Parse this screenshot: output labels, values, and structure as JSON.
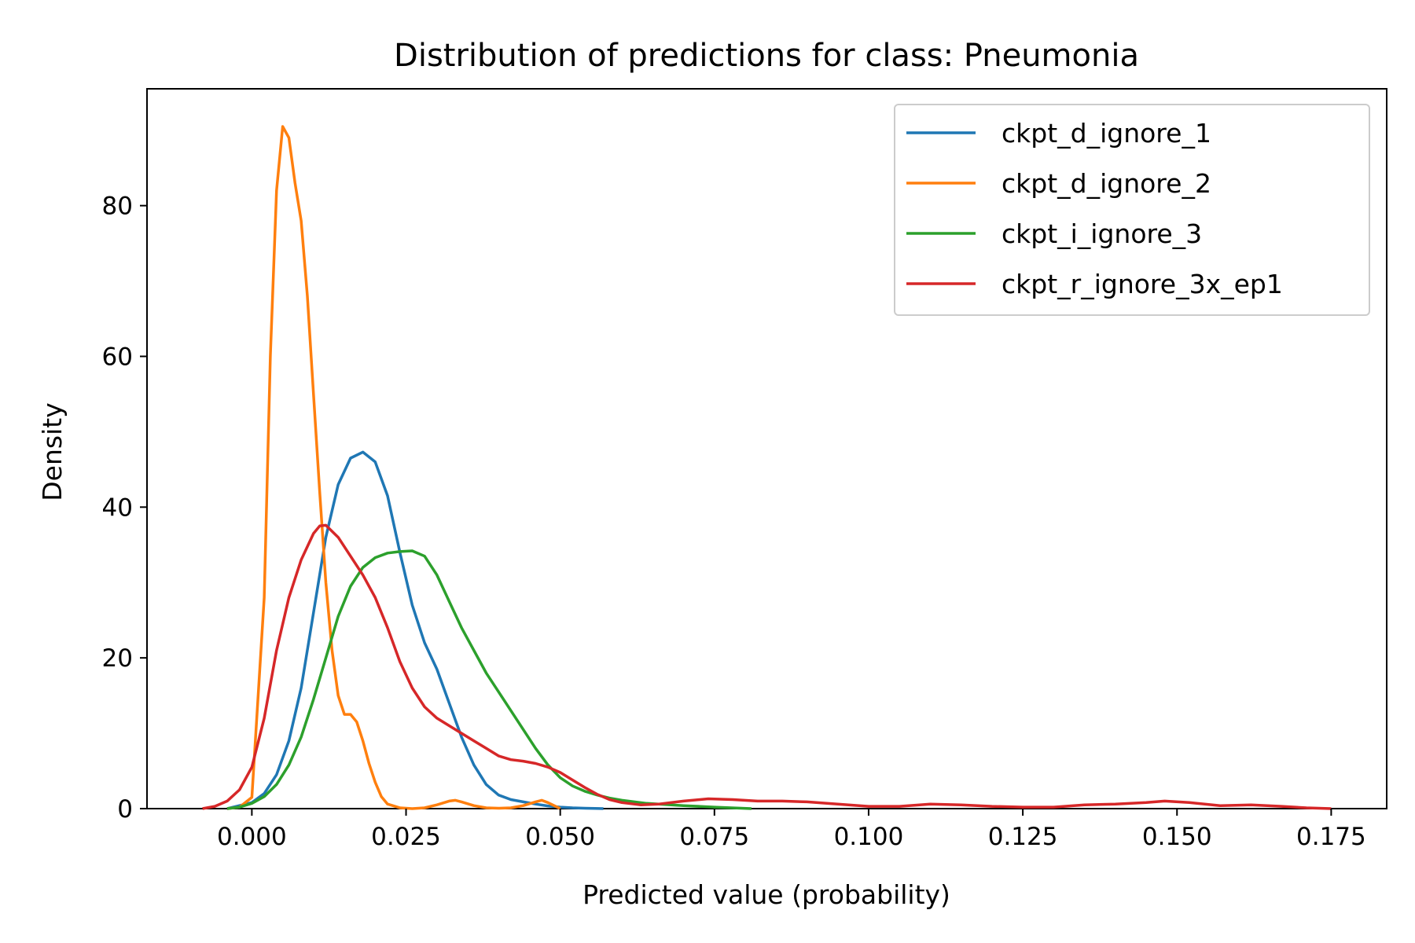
{
  "chart_data": {
    "type": "line",
    "title": "Distribution of predictions for class: Pneumonia",
    "xlabel": "Predicted value (probability)",
    "ylabel": "Density",
    "xlim": [
      -0.017,
      0.184
    ],
    "ylim": [
      0,
      95.5
    ],
    "xticks": [
      0.0,
      0.025,
      0.05,
      0.075,
      0.1,
      0.125,
      0.15,
      0.175
    ],
    "xtick_labels": [
      "0.000",
      "0.025",
      "0.050",
      "0.075",
      "0.100",
      "0.125",
      "0.150",
      "0.175"
    ],
    "yticks": [
      0,
      20,
      40,
      60,
      80
    ],
    "ytick_labels": [
      "0",
      "20",
      "40",
      "60",
      "80"
    ],
    "grid": false,
    "legend_position": "top-right",
    "series": [
      {
        "name": "ckpt_d_ignore_1",
        "color": "#1f77b4",
        "x": [
          -0.004,
          0.0,
          0.002,
          0.004,
          0.006,
          0.008,
          0.01,
          0.012,
          0.014,
          0.016,
          0.018,
          0.02,
          0.022,
          0.024,
          0.026,
          0.028,
          0.03,
          0.032,
          0.034,
          0.036,
          0.038,
          0.04,
          0.042,
          0.044,
          0.046,
          0.048,
          0.05,
          0.052,
          0.054,
          0.057
        ],
        "y": [
          0,
          0.8,
          2.0,
          4.5,
          9.0,
          16,
          26,
          36,
          43,
          46.5,
          47.3,
          46,
          41.5,
          34,
          27,
          22,
          18.5,
          14,
          9.5,
          5.8,
          3.2,
          1.8,
          1.2,
          0.9,
          0.6,
          0.35,
          0.2,
          0.1,
          0.05,
          0
        ]
      },
      {
        "name": "ckpt_d_ignore_2",
        "color": "#ff7f0e",
        "x": [
          -0.004,
          -0.002,
          0.0,
          0.002,
          0.003,
          0.004,
          0.005,
          0.006,
          0.007,
          0.008,
          0.009,
          0.01,
          0.011,
          0.012,
          0.013,
          0.014,
          0.015,
          0.016,
          0.017,
          0.018,
          0.019,
          0.02,
          0.021,
          0.022,
          0.024,
          0.026,
          0.028,
          0.03,
          0.032,
          0.033,
          0.034,
          0.036,
          0.038,
          0.04,
          0.042,
          0.044,
          0.046,
          0.047,
          0.048,
          0.05
        ],
        "y": [
          0,
          0.2,
          1.5,
          28,
          60,
          82,
          90.5,
          89,
          83,
          78,
          68,
          55,
          42,
          30,
          21,
          15,
          12.5,
          12.5,
          11.5,
          9,
          6,
          3.5,
          1.6,
          0.6,
          0.1,
          0.0,
          0.1,
          0.5,
          1.0,
          1.1,
          0.9,
          0.4,
          0.1,
          0.05,
          0.1,
          0.4,
          0.9,
          1.1,
          0.8,
          0
        ]
      },
      {
        "name": "ckpt_i_ignore_3",
        "color": "#2ca02c",
        "x": [
          -0.004,
          -0.002,
          0.0,
          0.002,
          0.004,
          0.006,
          0.008,
          0.01,
          0.012,
          0.014,
          0.016,
          0.018,
          0.02,
          0.022,
          0.024,
          0.026,
          0.028,
          0.03,
          0.032,
          0.034,
          0.036,
          0.038,
          0.04,
          0.042,
          0.044,
          0.046,
          0.048,
          0.05,
          0.052,
          0.054,
          0.056,
          0.058,
          0.06,
          0.062,
          0.064,
          0.066,
          0.07,
          0.075,
          0.081
        ],
        "y": [
          0,
          0.2,
          0.7,
          1.6,
          3.2,
          5.8,
          9.5,
          14.5,
          20,
          25.5,
          29.5,
          32,
          33.3,
          33.9,
          34.1,
          34.2,
          33.5,
          31,
          27.5,
          24,
          21,
          18,
          15.5,
          13,
          10.5,
          8,
          5.8,
          4.1,
          3.0,
          2.3,
          1.8,
          1.4,
          1.1,
          0.9,
          0.7,
          0.6,
          0.4,
          0.2,
          0
        ]
      },
      {
        "name": "ckpt_r_ignore_3x_ep1",
        "color": "#d62728",
        "x": [
          -0.008,
          -0.006,
          -0.004,
          -0.002,
          0.0,
          0.002,
          0.004,
          0.006,
          0.008,
          0.01,
          0.011,
          0.012,
          0.014,
          0.016,
          0.018,
          0.02,
          0.022,
          0.024,
          0.026,
          0.028,
          0.03,
          0.032,
          0.034,
          0.036,
          0.038,
          0.04,
          0.042,
          0.044,
          0.046,
          0.048,
          0.05,
          0.052,
          0.054,
          0.056,
          0.058,
          0.06,
          0.063,
          0.066,
          0.07,
          0.074,
          0.078,
          0.082,
          0.086,
          0.09,
          0.095,
          0.1,
          0.105,
          0.11,
          0.115,
          0.12,
          0.125,
          0.13,
          0.135,
          0.14,
          0.145,
          0.148,
          0.152,
          0.157,
          0.162,
          0.167,
          0.171,
          0.175
        ],
        "y": [
          0,
          0.3,
          1.0,
          2.5,
          5.5,
          12,
          21,
          28,
          33,
          36.5,
          37.5,
          37.6,
          36,
          33.5,
          31,
          28,
          24,
          19.5,
          16,
          13.5,
          12,
          11,
          10,
          9,
          8,
          7,
          6.5,
          6.3,
          6,
          5.5,
          4.8,
          3.8,
          2.8,
          1.9,
          1.2,
          0.8,
          0.5,
          0.6,
          1.0,
          1.3,
          1.2,
          1.0,
          1.0,
          0.9,
          0.6,
          0.3,
          0.3,
          0.6,
          0.5,
          0.3,
          0.2,
          0.2,
          0.5,
          0.6,
          0.8,
          1.0,
          0.8,
          0.4,
          0.5,
          0.3,
          0.1,
          0
        ]
      }
    ]
  }
}
